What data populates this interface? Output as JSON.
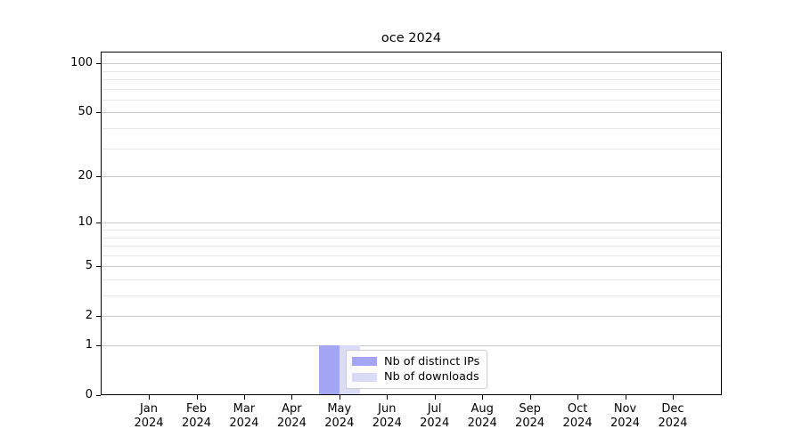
{
  "chart_data": {
    "type": "bar",
    "title": "oce 2024",
    "x_months": [
      "Jan",
      "Feb",
      "Mar",
      "Apr",
      "May",
      "Jun",
      "Jul",
      "Aug",
      "Sep",
      "Oct",
      "Nov",
      "Dec"
    ],
    "x_year": "2024",
    "series": [
      {
        "name": "Nb of distinct IPs",
        "color": "#a5a5f6",
        "values": [
          0,
          0,
          0,
          0,
          1,
          0,
          0,
          0,
          0,
          0,
          0,
          0
        ]
      },
      {
        "name": "Nb of downloads",
        "color": "#dbdbf8",
        "values": [
          0,
          0,
          0,
          0,
          1,
          0,
          0,
          0,
          0,
          0,
          0,
          0
        ]
      }
    ],
    "yscale": "log1p",
    "ylim": [
      0,
      118
    ],
    "ytick_values": [
      0,
      1,
      2,
      5,
      10,
      20,
      50,
      100
    ],
    "grid_values": [
      1,
      2,
      3,
      4,
      5,
      6,
      7,
      8,
      9,
      10,
      20,
      30,
      40,
      50,
      60,
      70,
      80,
      90,
      100
    ],
    "grid": true,
    "legend_position": "inside-bottom-center",
    "legend_items": [
      {
        "label": "Nb of distinct IPs",
        "color": "#a5a5f6"
      },
      {
        "label": "Nb of downloads",
        "color": "#dbdbf8"
      }
    ]
  },
  "colors": {
    "background": "#ffffff",
    "axis": "#000000",
    "grid_major": "#c9c9c9",
    "grid_minor": "#e8e8e8",
    "text": "#000000",
    "legend_border": "#cccccc",
    "bar_distinct_ips": "#a5a5f6",
    "bar_downloads": "#dbdbf8"
  }
}
